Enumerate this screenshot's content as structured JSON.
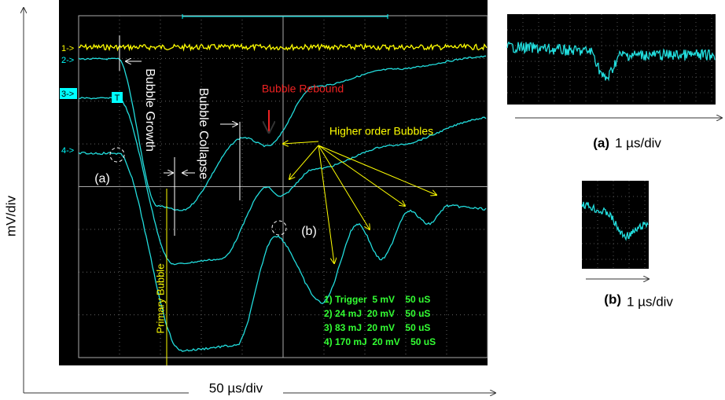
{
  "axis_labels": {
    "y": "mV/div",
    "x": "50 µs/div"
  },
  "channels": [
    "1->",
    "2->",
    "3->",
    "4->"
  ],
  "trigger_marker": "T",
  "annotations": {
    "bubble_growth": "Bubble Growth",
    "bubble_collapse": "Bubble Collapse",
    "bubble_rebound": "Bubble Rebound",
    "higher_order": "Higher order Bubbles",
    "primary_bubble": "Primary Bubble",
    "point_a": "(a)",
    "point_b": "(b)"
  },
  "legend": [
    "1) Trigger  5 mV    50 uS",
    "2) 24 mJ  20 mV    50 uS",
    "3) 83 mJ  20 mV    50 uS",
    "4) 170 mJ  20 mV    50 uS"
  ],
  "insets": [
    {
      "label": "(a)",
      "scale": "1 µs/div"
    },
    {
      "label": "(b)",
      "scale": "1 µs/div"
    }
  ]
}
